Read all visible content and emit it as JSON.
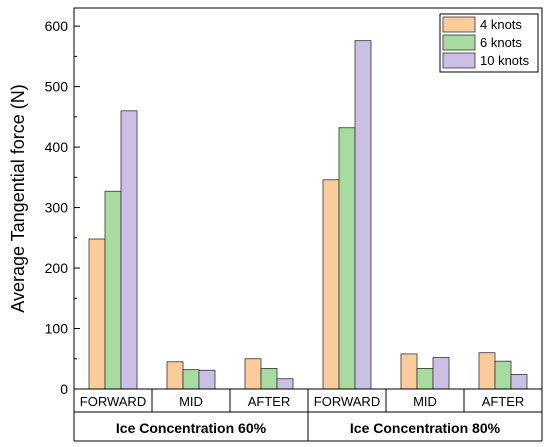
{
  "chart_data": {
    "type": "bar",
    "ylabel": "Average Tangential force (N)",
    "xlabel": "",
    "ylim": [
      0,
      630
    ],
    "yticks": [
      0,
      100,
      200,
      300,
      400,
      500,
      600
    ],
    "groups": [
      {
        "label": "Ice Concentration 60%",
        "categories": [
          "FORWARD",
          "MID",
          "AFTER"
        ]
      },
      {
        "label": "Ice Concentration 80%",
        "categories": [
          "FORWARD",
          "MID",
          "AFTER"
        ]
      }
    ],
    "series": [
      {
        "name": "4 knots",
        "color": "#FBCB9B",
        "values": [
          248,
          45,
          50,
          346,
          58,
          60
        ]
      },
      {
        "name": "6 knots",
        "color": "#A8DBA0",
        "values": [
          327,
          32,
          34,
          432,
          34,
          46
        ]
      },
      {
        "name": "10 knots",
        "color": "#CBBFE3",
        "values": [
          460,
          31,
          17,
          576,
          52,
          24
        ]
      }
    ],
    "legend_position": "top-right",
    "grid": false
  }
}
